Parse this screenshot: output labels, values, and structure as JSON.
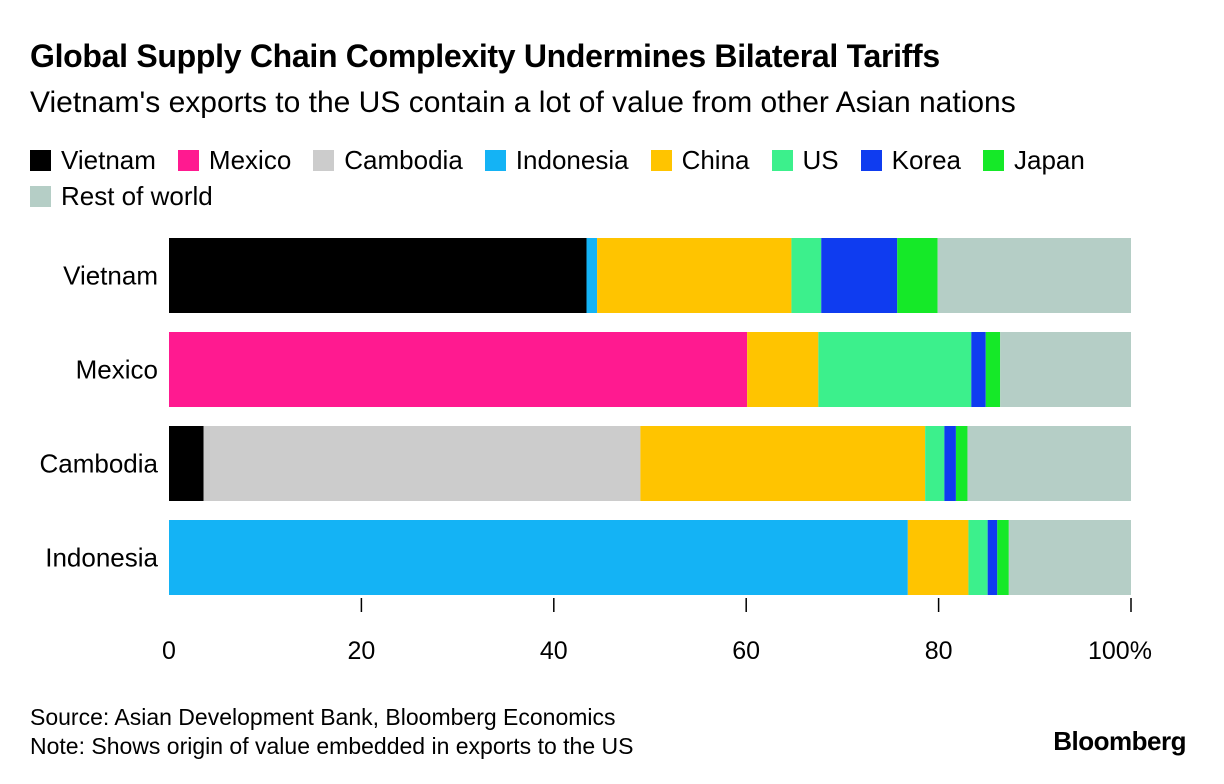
{
  "title": "Global Supply Chain Complexity Undermines Bilateral Tariffs",
  "subtitle": "Vietnam's exports to the US contain a lot of value from other Asian nations",
  "footer": {
    "source": "Source: Asian Development Bank, Bloomberg Economics",
    "note": "Note: Shows origin of value embedded in exports to the US",
    "brand": "Bloomberg"
  },
  "colors": {
    "Vietnam": "#000000",
    "Mexico": "#ff1a90",
    "Cambodia": "#cccccc",
    "Indonesia": "#14b3f5",
    "China": "#ffc400",
    "US": "#3cf08c",
    "Korea": "#0f3cf0",
    "Japan": "#15e928",
    "Rest of world": "#b5cec6"
  },
  "chart_data": {
    "type": "bar",
    "orientation": "horizontal",
    "stacked": true,
    "categories": [
      "Vietnam",
      "Mexico",
      "Cambodia",
      "Indonesia"
    ],
    "series": [
      {
        "name": "Vietnam",
        "values": [
          43.4,
          0,
          3.6,
          0
        ]
      },
      {
        "name": "Mexico",
        "values": [
          0,
          60.1,
          0,
          0
        ]
      },
      {
        "name": "Cambodia",
        "values": [
          0,
          0,
          45.4,
          0
        ]
      },
      {
        "name": "Indonesia",
        "values": [
          1.1,
          0,
          0,
          76.8
        ]
      },
      {
        "name": "China",
        "values": [
          20.2,
          7.4,
          29.6,
          6.3
        ]
      },
      {
        "name": "US",
        "values": [
          3.1,
          15.9,
          2.0,
          2.0
        ]
      },
      {
        "name": "Korea",
        "values": [
          7.9,
          1.5,
          1.2,
          1.0
        ]
      },
      {
        "name": "Japan",
        "values": [
          4.2,
          1.5,
          1.2,
          1.2
        ]
      },
      {
        "name": "Rest of world",
        "values": [
          20.1,
          13.6,
          17.0,
          12.7
        ]
      }
    ],
    "xticks": [
      "0",
      "20",
      "40",
      "60",
      "80",
      "100%"
    ],
    "xlim": [
      0,
      100
    ],
    "title": "Global Supply Chain Complexity Undermines Bilateral Tariffs",
    "legend": [
      "Vietnam",
      "Mexico",
      "Cambodia",
      "Indonesia",
      "China",
      "US",
      "Korea",
      "Japan",
      "Rest of world"
    ]
  }
}
